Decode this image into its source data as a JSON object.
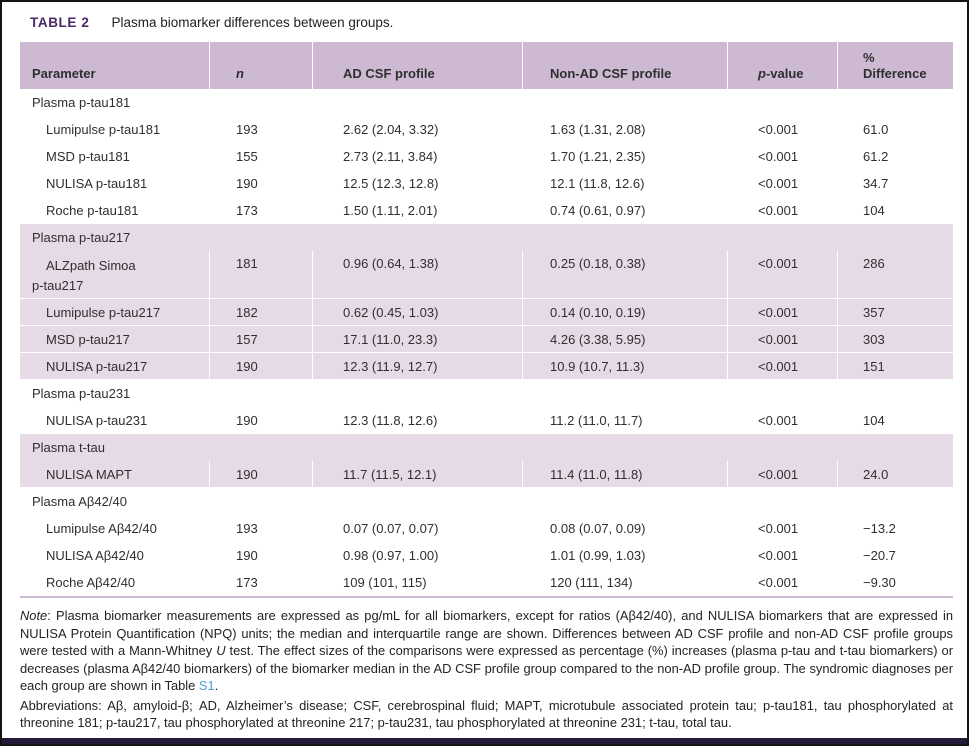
{
  "table_label": "TABLE 2",
  "table_caption": "Plasma biomarker differences between groups.",
  "colors": {
    "header_band": "#cdb9d2",
    "section_band": "#e6dae7",
    "title_purple": "#4d2866",
    "link_blue": "#4e9bd4",
    "bottom_bar": "#241a38"
  },
  "columns": [
    {
      "label": "Parameter"
    },
    {
      "label": "n",
      "italic": true
    },
    {
      "label": "AD CSF profile"
    },
    {
      "label": "Non-AD CSF profile"
    },
    {
      "label_italic": "p",
      "label_rest": "-value"
    },
    {
      "label": "%\nDifference"
    }
  ],
  "sections": [
    {
      "header": "Plasma p-tau181",
      "shaded": false,
      "rows": [
        {
          "parameter": "Lumipulse p-tau181",
          "n": "193",
          "ad": "2.62 (2.04, 3.32)",
          "nonad": "1.63 (1.31, 2.08)",
          "p": "<0.001",
          "diff": "61.0"
        },
        {
          "parameter": "MSD p-tau181",
          "n": "155",
          "ad": "2.73 (2.11, 3.84)",
          "nonad": "1.70 (1.21, 2.35)",
          "p": "<0.001",
          "diff": "61.2"
        },
        {
          "parameter": "NULISA p-tau181",
          "n": "190",
          "ad": "12.5 (12.3, 12.8)",
          "nonad": "12.1 (11.8, 12.6)",
          "p": "<0.001",
          "diff": "34.7"
        },
        {
          "parameter": "Roche p-tau181",
          "n": "173",
          "ad": "1.50 (1.11, 2.01)",
          "nonad": "0.74 (0.61, 0.97)",
          "p": "<0.001",
          "diff": "104"
        }
      ]
    },
    {
      "header": "Plasma p-tau217",
      "shaded": true,
      "rows": [
        {
          "parameter": "ALZpath Simoa\np-tau217",
          "n": "181",
          "ad": "0.96 (0.64, 1.38)",
          "nonad": "0.25 (0.18, 0.38)",
          "p": "<0.001",
          "diff": "286"
        },
        {
          "parameter": "Lumipulse p-tau217",
          "n": "182",
          "ad": "0.62 (0.45, 1.03)",
          "nonad": "0.14 (0.10, 0.19)",
          "p": "<0.001",
          "diff": "357"
        },
        {
          "parameter": "MSD p-tau217",
          "n": "157",
          "ad": "17.1 (11.0, 23.3)",
          "nonad": "4.26 (3.38, 5.95)",
          "p": "<0.001",
          "diff": "303"
        },
        {
          "parameter": "NULISA p-tau217",
          "n": "190",
          "ad": "12.3 (11.9, 12.7)",
          "nonad": "10.9 (10.7, 11.3)",
          "p": "<0.001",
          "diff": "151"
        }
      ]
    },
    {
      "header": "Plasma p-tau231",
      "shaded": false,
      "rows": [
        {
          "parameter": "NULISA p-tau231",
          "n": "190",
          "ad": "12.3 (11.8, 12.6)",
          "nonad": "11.2 (11.0, 11.7)",
          "p": "<0.001",
          "diff": "104"
        }
      ]
    },
    {
      "header": "Plasma t-tau",
      "shaded": true,
      "rows": [
        {
          "parameter": "NULISA MAPT",
          "n": "190",
          "ad": "11.7 (11.5, 12.1)",
          "nonad": "11.4 (11.0, 11.8)",
          "p": "<0.001",
          "diff": "24.0"
        }
      ]
    },
    {
      "header": "Plasma Aβ42/40",
      "shaded": false,
      "rows": [
        {
          "parameter": "Lumipulse Aβ42/40",
          "n": "193",
          "ad": "0.07 (0.07, 0.07)",
          "nonad": "0.08 (0.07, 0.09)",
          "p": "<0.001",
          "diff": "−13.2"
        },
        {
          "parameter": "NULISA Aβ42/40",
          "n": "190",
          "ad": "0.98 (0.97, 1.00)",
          "nonad": "1.01 (0.99, 1.03)",
          "p": "<0.001",
          "diff": "−20.7"
        },
        {
          "parameter": "Roche Aβ42/40",
          "n": "173",
          "ad": "109 (101, 115)",
          "nonad": "120 (111, 134)",
          "p": "<0.001",
          "diff": "−9.30"
        }
      ]
    }
  ],
  "note": {
    "label": "Note",
    "part1": ": Plasma biomarker measurements are expressed as pg/mL for all biomarkers, except for ratios (Aβ42/40), and NULISA biomarkers that are expressed in NULISA Protein Quantification (NPQ) units; the median and interquartile range are shown. Differences between AD CSF profile and non-AD CSF profile groups were tested with a Mann-Whitney ",
    "u": "U",
    "part2": " test. The effect sizes of the comparisons were expressed as percentage (%) increases (plasma p-tau and t-tau biomarkers) or decreases (plasma Aβ42/40 biomarkers) of the biomarker median in the AD CSF profile group compared to the non-AD profile group. The syndromic diagnoses per each group are shown in Table ",
    "link": "S1",
    "part3": "."
  },
  "abbreviations": "Abbreviations: Aβ, amyloid-β; AD, Alzheimer’s disease; CSF, cerebrospinal fluid; MAPT, microtubule associated protein tau; p-tau181, tau phosphorylated at threonine 181; p-tau217, tau phosphorylated at threonine 217; p-tau231, tau phosphorylated at threonine 231; t-tau, total tau."
}
